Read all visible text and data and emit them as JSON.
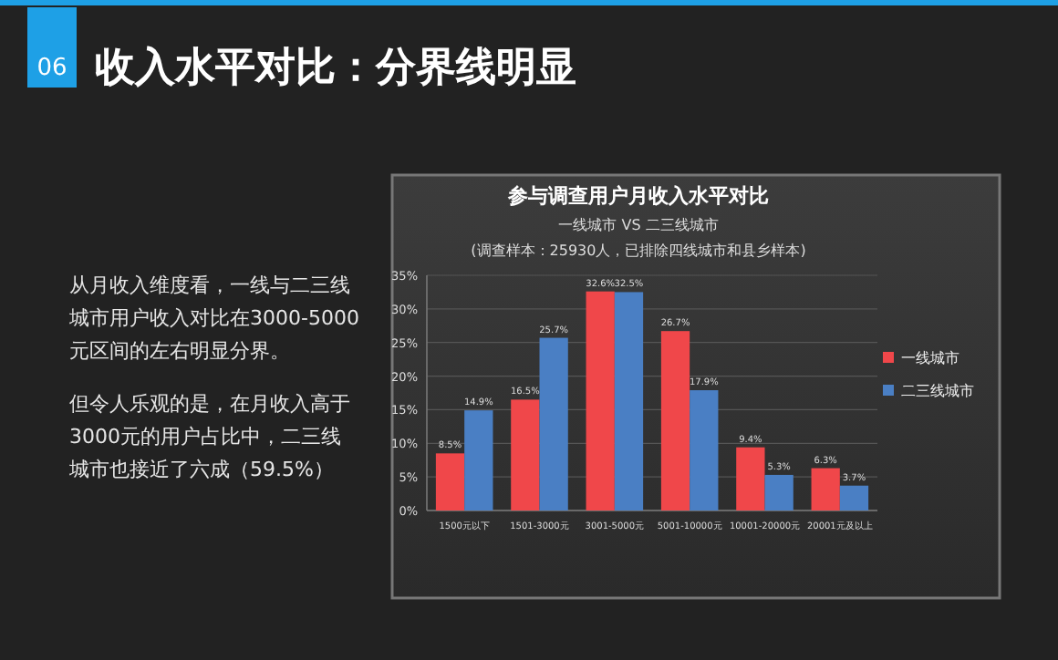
{
  "chart_data": {
    "type": "bar",
    "title": "参与调查用户月收入水平对比",
    "subtitle": "一线城市 VS 二三线城市",
    "annotations": [
      "06",
      "收入水平对比：分界线明显",
      "(调查样本：25930人，已排除四线城市和县乡样本)",
      "从月收入维度看，一线与二三线城市用户收入对比在3000-5000元区间的左右明显分界。",
      "但令人乐观的是，在月收入高于3000元的用户占比中，二三线城市也接近了六成（59.5%）"
    ],
    "categories": [
      "1500元以下",
      "1501-3000元",
      "3001-5000元",
      "5001-10000元",
      "10001-20000元",
      "20001元及以上"
    ],
    "series": [
      {
        "name": "一线城市",
        "color": "#f0474a",
        "values": [
          8.5,
          16.5,
          32.6,
          26.7,
          9.4,
          6.3
        ],
        "value_labels": [
          "8.5%",
          "16.5%",
          "32.6%",
          "26.7%",
          "9.4%",
          "6.3%"
        ]
      },
      {
        "name": "二三线城市",
        "color": "#4a7fc4",
        "values": [
          14.9,
          25.7,
          32.5,
          17.9,
          5.3,
          3.7
        ],
        "value_labels": [
          "14.9%",
          "25.7%",
          "32.5%",
          "17.9%",
          "5.3%",
          "3.7%"
        ]
      }
    ],
    "ylim": [
      0,
      35
    ],
    "yticks": [
      {
        "value": 0,
        "label": "0%"
      },
      {
        "value": 5,
        "label": "5%"
      },
      {
        "value": 10,
        "label": "10%"
      },
      {
        "value": 15,
        "label": "15%"
      },
      {
        "value": 20,
        "label": "20%"
      },
      {
        "value": 25,
        "label": "25%"
      },
      {
        "value": 30,
        "label": "30%"
      },
      {
        "value": 35,
        "label": "35%"
      }
    ],
    "grid": "y",
    "legend": "right"
  }
}
